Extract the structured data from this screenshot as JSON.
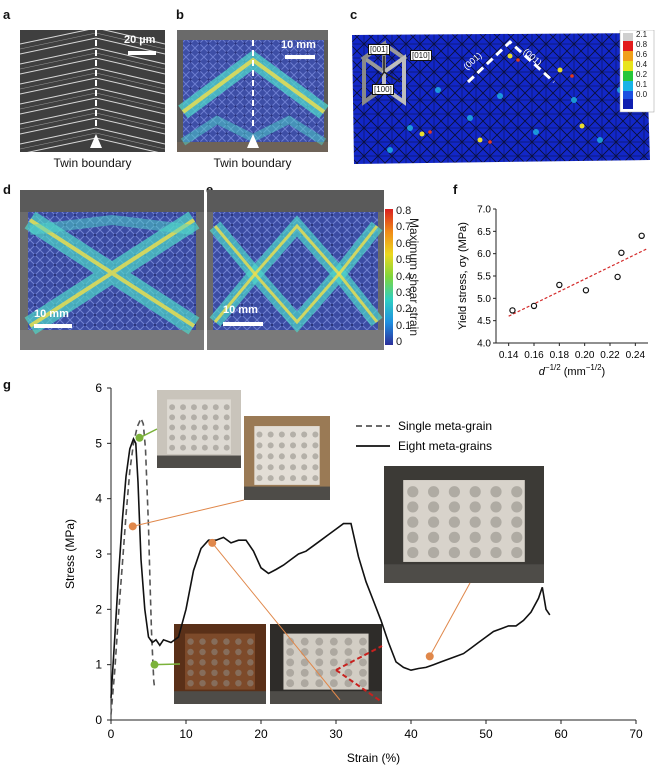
{
  "panels": {
    "a": {
      "letter": "a",
      "scale": "20 µm",
      "caption": "Twin boundary"
    },
    "b": {
      "letter": "b",
      "scale": "10 mm",
      "caption": "Twin boundary"
    },
    "c": {
      "letter": "c",
      "axes": [
        "[001]",
        "[010]",
        "[100]"
      ],
      "boundary_labels": [
        "(001)",
        "(001)"
      ],
      "colorbar_ticks": [
        "2.1",
        "0.8",
        "0.6",
        "0.4",
        "0.2",
        "0.1",
        "0.0"
      ]
    },
    "d": {
      "letter": "d",
      "scale": "10 mm"
    },
    "e": {
      "letter": "e",
      "scale": "10 mm",
      "colorbar_title": "Maximum shear strain",
      "colorbar_ticks": [
        "0.8",
        "0.7",
        "0.6",
        "0.5",
        "0.4",
        "0.3",
        "0.2",
        "0.1",
        "0"
      ]
    },
    "f": {
      "letter": "f"
    },
    "g": {
      "letter": "g"
    }
  },
  "chart_data": [
    {
      "id": "f",
      "type": "scatter",
      "title": "",
      "xlabel": "d⁻¹ᐟ² (mm⁻¹ᐟ²)",
      "xlabel_main": "d",
      "xlabel_sup": "−1/2",
      "xlabel_unit": "(mm",
      "xlabel_unit_sup": "−1/2",
      "xlabel_close": ")",
      "ylabel": "Yield stress, σy (MPa)",
      "xlim": [
        0.13,
        0.25
      ],
      "ylim": [
        4.0,
        7.0
      ],
      "xticks": [
        "0.14",
        "0.16",
        "0.18",
        "0.20",
        "0.22",
        "0.24"
      ],
      "xtick_values": [
        0.14,
        0.16,
        0.18,
        0.2,
        0.22,
        0.24
      ],
      "yticks": [
        "4.0",
        "4.5",
        "5.0",
        "5.5",
        "6.0",
        "6.5",
        "7.0"
      ],
      "ytick_values": [
        4.0,
        4.5,
        5.0,
        5.5,
        6.0,
        6.5,
        7.0
      ],
      "points": [
        {
          "x": 0.143,
          "y": 4.73
        },
        {
          "x": 0.16,
          "y": 4.83
        },
        {
          "x": 0.18,
          "y": 5.3
        },
        {
          "x": 0.201,
          "y": 5.18
        },
        {
          "x": 0.226,
          "y": 5.48
        },
        {
          "x": 0.229,
          "y": 6.02
        },
        {
          "x": 0.245,
          "y": 6.4
        }
      ],
      "fit": {
        "x": [
          0.14,
          0.25
        ],
        "y": [
          4.6,
          6.12
        ],
        "style": "dashed",
        "color": "#d42a2a"
      }
    },
    {
      "id": "g",
      "type": "line",
      "title": "",
      "xlabel": "Strain (%)",
      "ylabel": "Stress (MPa)",
      "xlim": [
        0,
        70
      ],
      "ylim": [
        0,
        6
      ],
      "xticks": [
        "0",
        "10",
        "20",
        "30",
        "40",
        "50",
        "60",
        "70"
      ],
      "xtick_values": [
        0,
        10,
        20,
        30,
        40,
        50,
        60,
        70
      ],
      "yticks": [
        "0",
        "1",
        "2",
        "3",
        "4",
        "5",
        "6"
      ],
      "ytick_values": [
        0,
        1,
        2,
        3,
        4,
        5,
        6
      ],
      "legend": {
        "position": "top-right",
        "entries": [
          "Single meta-grain",
          "Eight meta-grains"
        ]
      },
      "series": [
        {
          "name": "Single meta-grain",
          "style": "dashed",
          "color": "#555555",
          "x": [
            0.0,
            0.5,
            1.0,
            1.5,
            2.0,
            2.5,
            3.0,
            3.5,
            4.0,
            4.3,
            4.6,
            5.0,
            5.2,
            5.4,
            5.6,
            5.7,
            5.8
          ],
          "y": [
            0.1,
            0.9,
            1.9,
            2.8,
            3.7,
            4.5,
            5.0,
            5.3,
            5.45,
            5.35,
            4.9,
            3.5,
            2.5,
            1.6,
            1.0,
            0.7,
            0.6
          ]
        },
        {
          "name": "Eight meta-grains",
          "style": "solid",
          "color": "#111111",
          "x": [
            0.0,
            0.5,
            1.0,
            1.5,
            2.0,
            2.5,
            3.0,
            3.3,
            3.6,
            4.0,
            4.5,
            5.0,
            5.5,
            6.0,
            6.5,
            7.0,
            8.0,
            9.0,
            10.0,
            11.0,
            12.0,
            13.0,
            14.0,
            15.0,
            16.0,
            17.0,
            18.0,
            19.0,
            20.0,
            21.0,
            22.0,
            23.0,
            24.0,
            25.0,
            26.0,
            27.0,
            28.0,
            29.0,
            30.0,
            31.0,
            32.0,
            33.0,
            34.0,
            35.0,
            36.0,
            37.0,
            38.0,
            39.0,
            40.0,
            41.0,
            42.0,
            43.0,
            44.0,
            45.0,
            46.0,
            47.0,
            48.0,
            49.0,
            50.0,
            51.0,
            52.0,
            53.0,
            54.0,
            55.0,
            56.0,
            57.0,
            57.5,
            58.0,
            58.5
          ],
          "y": [
            0.4,
            1.5,
            2.6,
            3.6,
            4.4,
            4.9,
            5.08,
            5.0,
            4.3,
            2.9,
            2.0,
            1.5,
            1.4,
            1.45,
            1.35,
            1.45,
            1.4,
            1.5,
            2.0,
            2.7,
            3.1,
            3.25,
            3.25,
            3.3,
            3.2,
            3.25,
            3.25,
            3.05,
            2.75,
            2.65,
            2.72,
            2.8,
            2.9,
            3.0,
            3.05,
            3.15,
            3.25,
            3.35,
            3.45,
            3.55,
            3.55,
            2.95,
            2.5,
            2.15,
            1.8,
            1.4,
            1.05,
            0.95,
            0.9,
            0.93,
            0.95,
            1.0,
            1.05,
            1.1,
            1.15,
            1.2,
            1.3,
            1.4,
            1.5,
            1.6,
            1.65,
            1.7,
            1.7,
            1.8,
            1.95,
            2.2,
            2.4,
            2.0,
            1.9
          ]
        }
      ]
    }
  ]
}
